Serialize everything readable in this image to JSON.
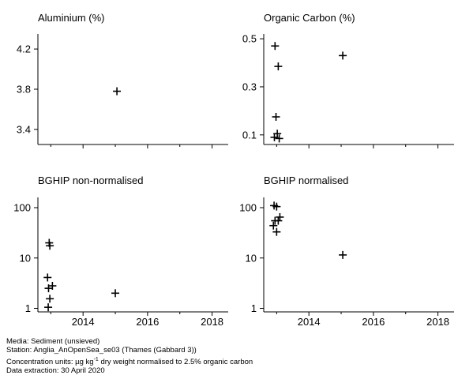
{
  "chart_data": [
    {
      "type": "scatter",
      "title": "Aluminium (%)",
      "scale": "linear",
      "ylim": [
        3.25,
        4.35
      ],
      "yticks": [
        4.2,
        3.8,
        3.4
      ],
      "ytick_labels": [
        "4.2",
        "3.8",
        "3.4"
      ],
      "xlim": [
        2012.6,
        2018.5
      ],
      "xticks": [
        2014,
        2016,
        2018
      ],
      "xtick_labels": [],
      "marker": "plus",
      "points": [
        [
          2015.05,
          3.78
        ]
      ]
    },
    {
      "type": "scatter",
      "title": "Organic Carbon (%)",
      "scale": "linear",
      "ylim": [
        0.06,
        0.52
      ],
      "yticks": [
        0.5,
        0.3,
        0.1
      ],
      "ytick_labels": [
        "0.5",
        "0.3",
        "0.1"
      ],
      "xlim": [
        2012.6,
        2018.5
      ],
      "xticks": [
        2014,
        2016,
        2018
      ],
      "xtick_labels": [],
      "marker": "plus",
      "points": [
        [
          2012.95,
          0.47
        ],
        [
          2013.05,
          0.385
        ],
        [
          2012.98,
          0.175
        ],
        [
          2013.02,
          0.105
        ],
        [
          2012.93,
          0.09
        ],
        [
          2013.08,
          0.085
        ],
        [
          2015.05,
          0.43
        ]
      ]
    },
    {
      "type": "scatter",
      "title": "BGHIP non-normalised",
      "scale": "log",
      "ylim": [
        0.85,
        160
      ],
      "yticks": [
        100,
        10,
        1
      ],
      "ytick_labels": [
        "100",
        "10",
        "1"
      ],
      "xlim": [
        2012.6,
        2018.5
      ],
      "xticks": [
        2014,
        2016,
        2018
      ],
      "xtick_labels": [
        "2014",
        "2016",
        "2018"
      ],
      "marker": "plus",
      "points": [
        [
          2012.95,
          20
        ],
        [
          2012.97,
          17.5
        ],
        [
          2012.9,
          4.1
        ],
        [
          2013.05,
          2.8
        ],
        [
          2012.93,
          2.5
        ],
        [
          2012.97,
          1.55
        ],
        [
          2012.92,
          1.05
        ],
        [
          2015.0,
          2.0
        ]
      ]
    },
    {
      "type": "scatter",
      "title": "BGHIP normalised",
      "scale": "log",
      "ylim": [
        0.85,
        160
      ],
      "yticks": [
        100,
        10,
        1
      ],
      "ytick_labels": [
        "100",
        "10",
        "1"
      ],
      "xlim": [
        2012.6,
        2018.5
      ],
      "xticks": [
        2014,
        2016,
        2018
      ],
      "xtick_labels": [
        "2014",
        "2016",
        "2018"
      ],
      "marker": "plus",
      "points": [
        [
          2012.92,
          110
        ],
        [
          2013.0,
          105
        ],
        [
          2013.1,
          65
        ],
        [
          2012.95,
          55
        ],
        [
          2013.05,
          55
        ],
        [
          2012.9,
          44
        ],
        [
          2013.0,
          33
        ],
        [
          2015.05,
          11.5
        ]
      ]
    }
  ],
  "footer": {
    "media": "Media: Sediment (unsieved)",
    "station": "Station: Anglia_AnOpenSea_se03 (Thames (Gabbard 3))",
    "units_prefix": "Concentration units:  µg kg",
    "units_sup": "-1",
    "units_suffix": " dry weight normalised to 2.5% organic carbon",
    "extraction": "Data extraction: 30 April 2020"
  }
}
